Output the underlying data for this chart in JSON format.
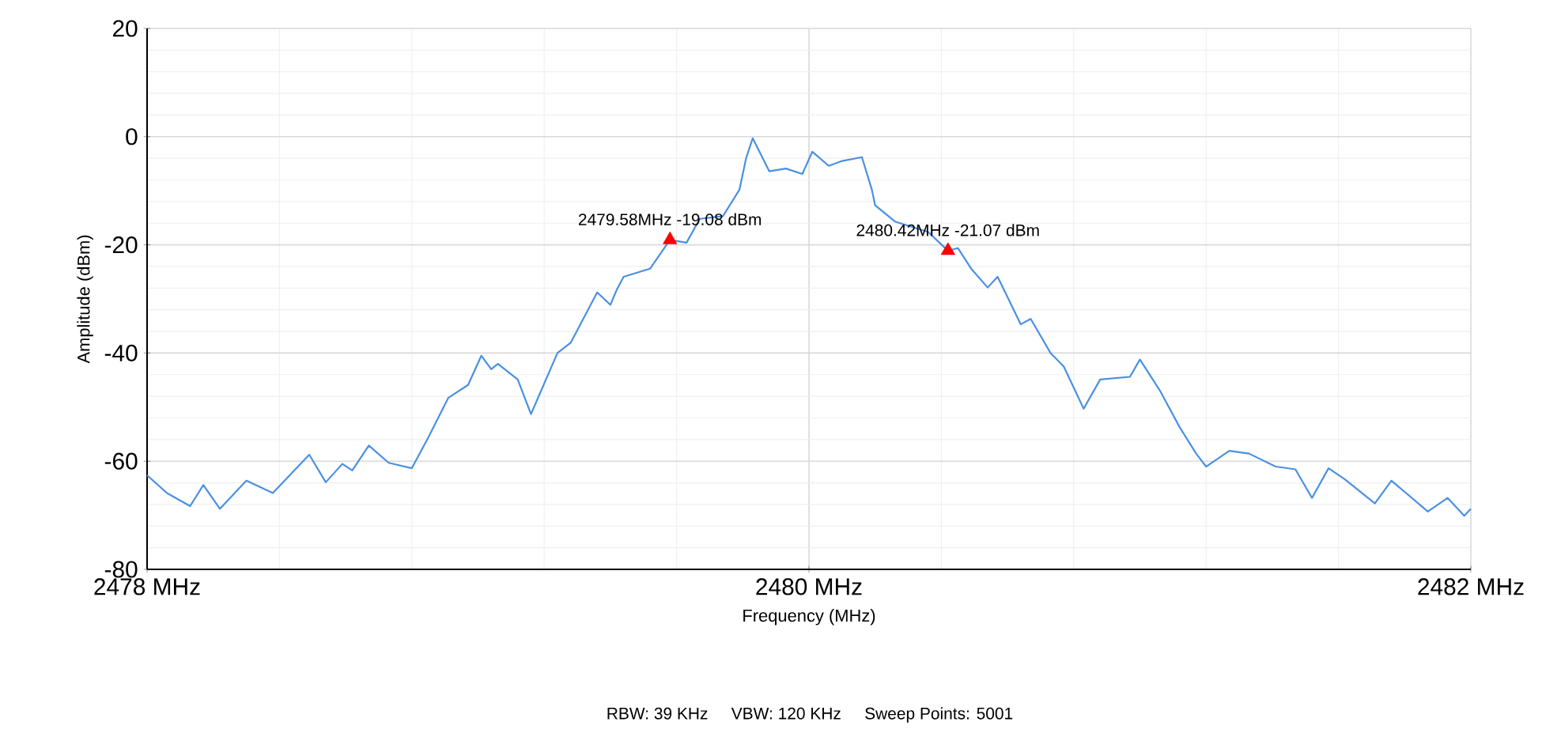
{
  "chart_data": {
    "type": "line",
    "xlabel": "Frequency (MHz)",
    "ylabel": "Amplitude (dBm)",
    "xlim": [
      2478,
      2482
    ],
    "ylim": [
      -80,
      20
    ],
    "xticks": [
      {
        "value": 2478,
        "label": "2478 MHz"
      },
      {
        "value": 2480,
        "label": "2480 MHz"
      },
      {
        "value": 2482,
        "label": "2482 MHz"
      }
    ],
    "yticks": [
      -80,
      -60,
      -40,
      -20,
      0,
      20
    ],
    "grid": true,
    "series": [
      {
        "color": "#4a90e2",
        "x": [
          2478.0,
          2478.06,
          2478.13,
          2478.17,
          2478.22,
          2478.3,
          2478.38,
          2478.49,
          2478.54,
          2478.59,
          2478.62,
          2478.67,
          2478.73,
          2478.8,
          2478.85,
          2478.91,
          2478.97,
          2479.01,
          2479.04,
          2479.06,
          2479.12,
          2479.16,
          2479.24,
          2479.28,
          2479.36,
          2479.4,
          2479.42,
          2479.44,
          2479.52,
          2479.58,
          2479.63,
          2479.67,
          2479.74,
          2479.79,
          2479.81,
          2479.83,
          2479.88,
          2479.93,
          2479.98,
          2480.01,
          2480.06,
          2480.1,
          2480.16,
          2480.19,
          2480.2,
          2480.26,
          2480.36,
          2480.42,
          2480.45,
          2480.49,
          2480.54,
          2480.57,
          2480.64,
          2480.67,
          2480.73,
          2480.77,
          2480.83,
          2480.88,
          2480.97,
          2481.0,
          2481.06,
          2481.12,
          2481.17,
          2481.2,
          2481.27,
          2481.33,
          2481.41,
          2481.47,
          2481.52,
          2481.57,
          2481.62,
          2481.71,
          2481.76,
          2481.87,
          2481.93,
          2481.98,
          2482.0
        ],
        "values": [
          -62.6,
          -65.9,
          -68.3,
          -64.4,
          -68.8,
          -63.6,
          -65.9,
          -58.8,
          -63.9,
          -60.5,
          -61.7,
          -57.1,
          -60.3,
          -61.3,
          -55.6,
          -48.3,
          -45.9,
          -40.5,
          -43.0,
          -42.0,
          -44.9,
          -51.3,
          -40.0,
          -38.1,
          -28.8,
          -31.1,
          -28.2,
          -25.9,
          -24.4,
          -19.1,
          -19.6,
          -15.2,
          -14.7,
          -9.8,
          -4.0,
          -0.3,
          -6.4,
          -5.9,
          -6.9,
          -2.8,
          -5.4,
          -4.5,
          -3.8,
          -9.8,
          -12.7,
          -15.7,
          -17.6,
          -21.1,
          -20.6,
          -24.4,
          -27.9,
          -25.9,
          -34.7,
          -33.7,
          -40.0,
          -42.5,
          -50.3,
          -44.9,
          -44.4,
          -41.2,
          -46.9,
          -53.7,
          -58.6,
          -61.0,
          -58.1,
          -58.6,
          -61.0,
          -61.5,
          -66.8,
          -61.3,
          -63.4,
          -67.8,
          -63.6,
          -69.3,
          -66.8,
          -70.1,
          -68.8
        ]
      },
      {
        "type": "scatter",
        "color": "#ff0000",
        "marker": "triangle",
        "x": [
          2479.58,
          2480.42
        ],
        "values": [
          -19.08,
          -21.07
        ],
        "value_labels": [
          "2479.58MHz  -19.08 dBm",
          "2480.42MHz  -21.07 dBm"
        ]
      }
    ],
    "annotations": [
      "RBW: 39 KHz",
      "VBW: 120 KHz",
      "Sweep Points: 5001"
    ]
  }
}
